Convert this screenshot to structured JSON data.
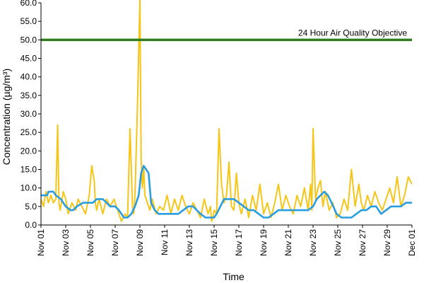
{
  "chart_data": {
    "type": "line",
    "title": "",
    "xlabel": "Time",
    "ylabel": "Concentration (µg/m³)",
    "ylim": [
      0,
      60
    ],
    "xlim": [
      "Nov 01",
      "Dec 01"
    ],
    "y_ticks": [
      "0.0",
      "5.0",
      "10.0",
      "15.0",
      "20.0",
      "25.0",
      "30.0",
      "35.0",
      "40.0",
      "45.0",
      "50.0",
      "55.0",
      "60.0"
    ],
    "x_ticks": [
      "Nov 01",
      "Nov 03",
      "Nov 05",
      "Nov 07",
      "Nov 09",
      "Nov 11",
      "Nov 13",
      "Nov 15",
      "Nov 17",
      "Nov 19",
      "Nov 21",
      "Nov 23",
      "Nov 25",
      "Nov 27",
      "Nov 29",
      "Dec 01"
    ],
    "grid": false,
    "objective": {
      "label": "24 Hour Air Quality Objective",
      "value": 50,
      "color": "#2e7d1f"
    },
    "series": [
      {
        "color": "#f5c518",
        "x_days": [
          0,
          0.2,
          0.4,
          0.6,
          0.8,
          1.0,
          1.2,
          1.35,
          1.45,
          1.55,
          1.8,
          2.0,
          2.2,
          2.5,
          2.8,
          3.0,
          3.3,
          3.6,
          3.9,
          4.1,
          4.3,
          4.4,
          4.5,
          4.7,
          5.0,
          5.3,
          5.6,
          5.9,
          6.2,
          6.5,
          6.8,
          7.0,
          7.2,
          7.4,
          7.5,
          7.6,
          7.8,
          8.0,
          8.1,
          8.2,
          8.3,
          8.4,
          8.6,
          8.8,
          9.0,
          9.3,
          9.6,
          9.9,
          10.2,
          10.5,
          10.8,
          11.1,
          11.4,
          11.7,
          12.0,
          12.3,
          12.6,
          12.9,
          13.2,
          13.5,
          13.7,
          13.8,
          13.9,
          14.0,
          14.2,
          14.4,
          14.6,
          14.8,
          15.0,
          15.2,
          15.4,
          15.6,
          15.8,
          16.0,
          16.2,
          16.5,
          16.8,
          17.1,
          17.4,
          17.7,
          18.0,
          18.3,
          18.6,
          18.9,
          19.2,
          19.5,
          19.8,
          20.1,
          20.4,
          20.7,
          21.0,
          21.3,
          21.6,
          21.8,
          21.9,
          22.0,
          22.2,
          22.4,
          22.6,
          22.8,
          23.0,
          23.3,
          23.6,
          23.9,
          24.2,
          24.5,
          24.8,
          25.1,
          25.4,
          25.7,
          25.9,
          26.1,
          26.4,
          26.7,
          27.0,
          27.3,
          27.6,
          27.9,
          28.2,
          28.5,
          28.8,
          29.1,
          29.4,
          29.7,
          30.0
        ],
        "y": [
          7,
          5,
          9,
          6,
          8,
          6,
          7,
          27,
          6,
          4,
          9,
          7,
          3,
          6,
          4,
          7,
          5,
          3,
          8,
          16,
          12,
          6,
          4,
          7,
          3,
          7,
          5,
          7,
          4,
          1,
          3,
          2,
          26,
          5,
          3,
          8,
          32,
          61,
          18,
          10,
          16,
          8,
          6,
          4,
          7,
          3,
          5,
          4,
          8,
          3,
          7,
          4,
          8,
          5,
          3,
          6,
          4,
          2,
          7,
          3,
          5,
          1,
          2,
          4,
          3,
          26,
          11,
          6,
          8,
          17,
          5,
          4,
          14,
          6,
          3,
          7,
          2,
          8,
          4,
          11,
          3,
          6,
          2,
          6,
          11,
          4,
          8,
          5,
          3,
          8,
          5,
          10,
          4,
          11,
          4,
          26,
          7,
          10,
          12,
          5,
          9,
          4,
          6,
          2,
          3,
          7,
          4,
          15,
          5,
          11,
          6,
          4,
          8,
          5,
          9,
          6,
          4,
          7,
          10,
          6,
          13,
          5,
          8,
          13,
          11
        ]
      },
      {
        "color": "#2a9de0",
        "x_days": [
          0,
          0.5,
          0.6,
          1.0,
          1.2,
          1.6,
          2.0,
          2.4,
          2.6,
          2.9,
          3.4,
          3.8,
          4.2,
          4.5,
          5.0,
          5.3,
          5.6,
          6.0,
          6.3,
          6.5,
          6.7,
          7.0,
          7.3,
          7.6,
          7.9,
          8.1,
          8.3,
          8.5,
          8.7,
          8.9,
          9.2,
          9.5,
          9.9,
          10.3,
          10.7,
          11.1,
          11.5,
          11.9,
          12.3,
          12.6,
          12.9,
          13.3,
          13.7,
          14.0,
          14.2,
          14.5,
          14.8,
          15.2,
          15.6,
          16.0,
          16.4,
          16.8,
          17.2,
          17.6,
          18.0,
          18.4,
          18.8,
          19.2,
          19.6,
          20.0,
          20.4,
          20.8,
          21.2,
          21.6,
          22.0,
          22.3,
          22.6,
          22.9,
          23.2,
          23.5,
          23.9,
          24.3,
          24.7,
          25.1,
          25.5,
          25.9,
          26.3,
          26.7,
          27.1,
          27.5,
          27.9,
          28.3,
          28.7,
          29.1,
          29.5,
          30.0
        ],
        "y": [
          8,
          8,
          9,
          9,
          8,
          7,
          5,
          4,
          4,
          5,
          6,
          6,
          6,
          7,
          7,
          6,
          5,
          5,
          4,
          3,
          2,
          2,
          3,
          5,
          8,
          14,
          16,
          15,
          14,
          6,
          4,
          3,
          3,
          3,
          3,
          3,
          4,
          5,
          5,
          4,
          3,
          2,
          2,
          2,
          3,
          5,
          7,
          7,
          7,
          6,
          5,
          4,
          4,
          3,
          2,
          2,
          3,
          4,
          4,
          4,
          4,
          4,
          4,
          4,
          5,
          7,
          8,
          9,
          8,
          6,
          3,
          2,
          2,
          2,
          3,
          4,
          4,
          5,
          5,
          3,
          4,
          5,
          5,
          5,
          6,
          6
        ]
      }
    ]
  }
}
